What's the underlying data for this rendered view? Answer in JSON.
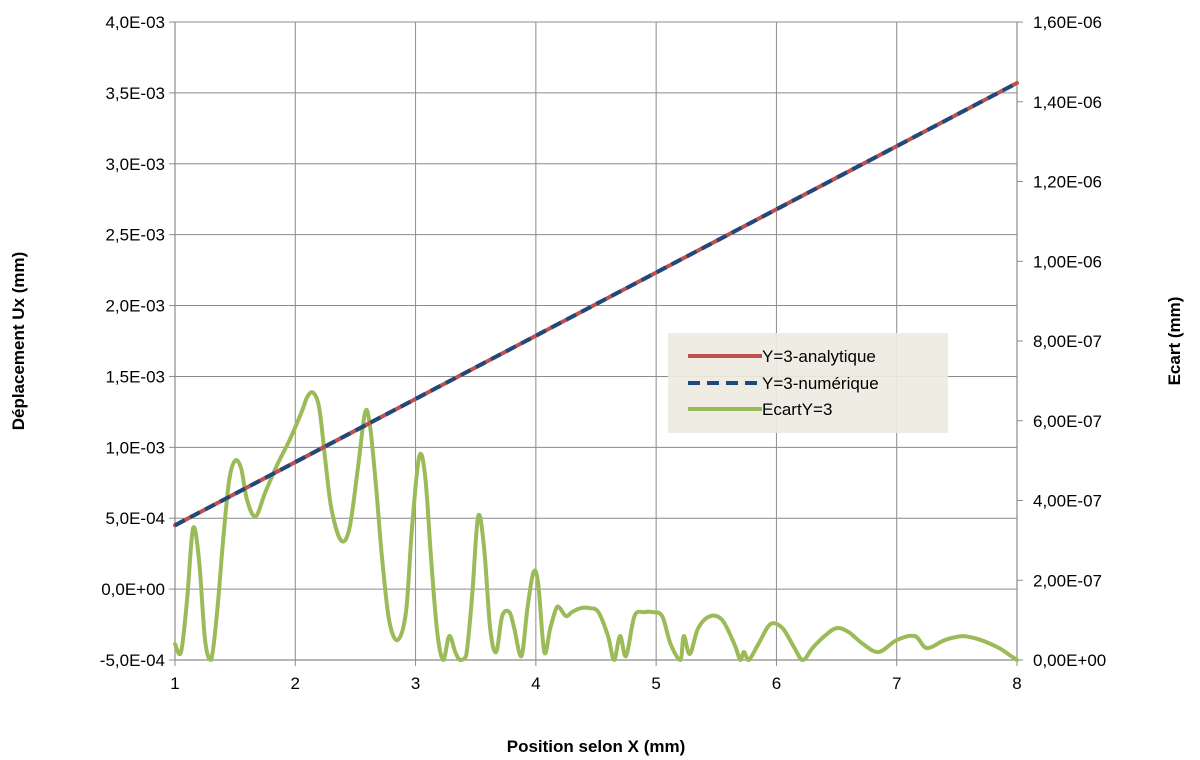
{
  "chart_data": {
    "type": "line",
    "title": "",
    "xlabel": "Position selon X (mm)",
    "ylabel": "Déplacement Ux (mm)",
    "y2label": "Ecart (mm)",
    "xlim": [
      1,
      8
    ],
    "ylim": [
      -0.0005,
      0.004
    ],
    "y2lim": [
      0,
      1.6e-06
    ],
    "grid": true,
    "legend_position": "center-right",
    "x_ticks": [
      "1",
      "2",
      "3",
      "4",
      "5",
      "6",
      "7",
      "8"
    ],
    "y_ticks": [
      "-5,0E-04",
      "0,0E+00",
      "5,0E-04",
      "1,0E-03",
      "1,5E-03",
      "2,0E-03",
      "2,5E-03",
      "3,0E-03",
      "3,5E-03",
      "4,0E-03"
    ],
    "y2_ticks": [
      "0,00E+00",
      "2,00E-07",
      "4,00E-07",
      "6,00E-07",
      "8,00E-07",
      "1,00E-06",
      "1,20E-06",
      "1,40E-06",
      "1,60E-06"
    ],
    "series": [
      {
        "name": "Y=3-analytique",
        "axis": "left",
        "color": "#c0504d",
        "dash": "solid",
        "x": [
          1,
          8
        ],
        "y": [
          0.00045,
          0.00357
        ]
      },
      {
        "name": "Y=3-numérique",
        "axis": "left",
        "color": "#1f497d",
        "dash": "dashed",
        "x": [
          1,
          8
        ],
        "y": [
          0.00045,
          0.00357
        ]
      },
      {
        "name": "EcartY=3",
        "axis": "right",
        "color": "#9bbb59",
        "dash": "solid",
        "x": [
          1.0,
          1.05,
          1.1,
          1.15,
          1.2,
          1.25,
          1.3,
          1.35,
          1.4,
          1.45,
          1.5,
          1.55,
          1.6,
          1.67,
          1.75,
          1.85,
          1.95,
          2.05,
          2.1,
          2.15,
          2.2,
          2.25,
          2.3,
          2.38,
          2.45,
          2.52,
          2.58,
          2.62,
          2.67,
          2.72,
          2.78,
          2.85,
          2.92,
          2.97,
          3.03,
          3.08,
          3.13,
          3.18,
          3.23,
          3.28,
          3.33,
          3.37,
          3.42,
          3.47,
          3.52,
          3.57,
          3.62,
          3.67,
          3.72,
          3.78,
          3.82,
          3.88,
          3.93,
          3.98,
          4.02,
          4.07,
          4.12,
          4.17,
          4.2,
          4.25,
          4.3,
          4.37,
          4.45,
          4.52,
          4.6,
          4.65,
          4.7,
          4.75,
          4.82,
          4.9,
          4.97,
          5.05,
          5.12,
          5.2,
          5.23,
          5.28,
          5.35,
          5.45,
          5.55,
          5.65,
          5.7,
          5.73,
          5.77,
          5.85,
          5.95,
          6.05,
          6.15,
          6.22,
          6.3,
          6.4,
          6.5,
          6.6,
          6.72,
          6.85,
          7.0,
          7.15,
          7.25,
          7.4,
          7.55,
          7.7,
          7.85,
          7.95,
          8.0
        ],
        "y": [
          4e-08,
          2e-08,
          1.5e-07,
          3.3e-07,
          2.5e-07,
          5e-08,
          0,
          1.2e-07,
          3e-07,
          4.5e-07,
          5e-07,
          4.8e-07,
          4e-07,
          3.6e-07,
          4.2e-07,
          4.9e-07,
          5.5e-07,
          6.2e-07,
          6.6e-07,
          6.7e-07,
          6.3e-07,
          5e-07,
          3.8e-07,
          3e-07,
          3.3e-07,
          4.8e-07,
          6.2e-07,
          5.9e-07,
          4.4e-07,
          2.6e-07,
          1e-07,
          5e-08,
          1.2e-07,
          3.3e-07,
          5.1e-07,
          4.6e-07,
          2.5e-07,
          7e-08,
          0,
          6e-08,
          2e-08,
          0,
          1e-08,
          1.6e-07,
          3.6e-07,
          2.8e-07,
          8e-08,
          2e-08,
          1.1e-07,
          1.2e-07,
          8e-08,
          1e-08,
          1.3e-07,
          2.2e-07,
          1.9e-07,
          2e-08,
          8e-08,
          1.3e-07,
          1.3e-07,
          1.1e-07,
          1.2e-07,
          1.3e-07,
          1.3e-07,
          1.2e-07,
          6e-08,
          0,
          6e-08,
          1e-08,
          1.1e-07,
          1.2e-07,
          1.2e-07,
          1.1e-07,
          4e-08,
          0,
          6e-08,
          1.5e-08,
          8e-08,
          1.1e-07,
          1e-07,
          4e-08,
          0,
          2e-08,
          0,
          4e-08,
          9e-08,
          8e-08,
          3e-08,
          0,
          3e-08,
          6e-08,
          8e-08,
          7e-08,
          4e-08,
          2e-08,
          5e-08,
          6e-08,
          3e-08,
          5e-08,
          6e-08,
          5e-08,
          3e-08,
          1e-08,
          0
        ]
      }
    ]
  }
}
